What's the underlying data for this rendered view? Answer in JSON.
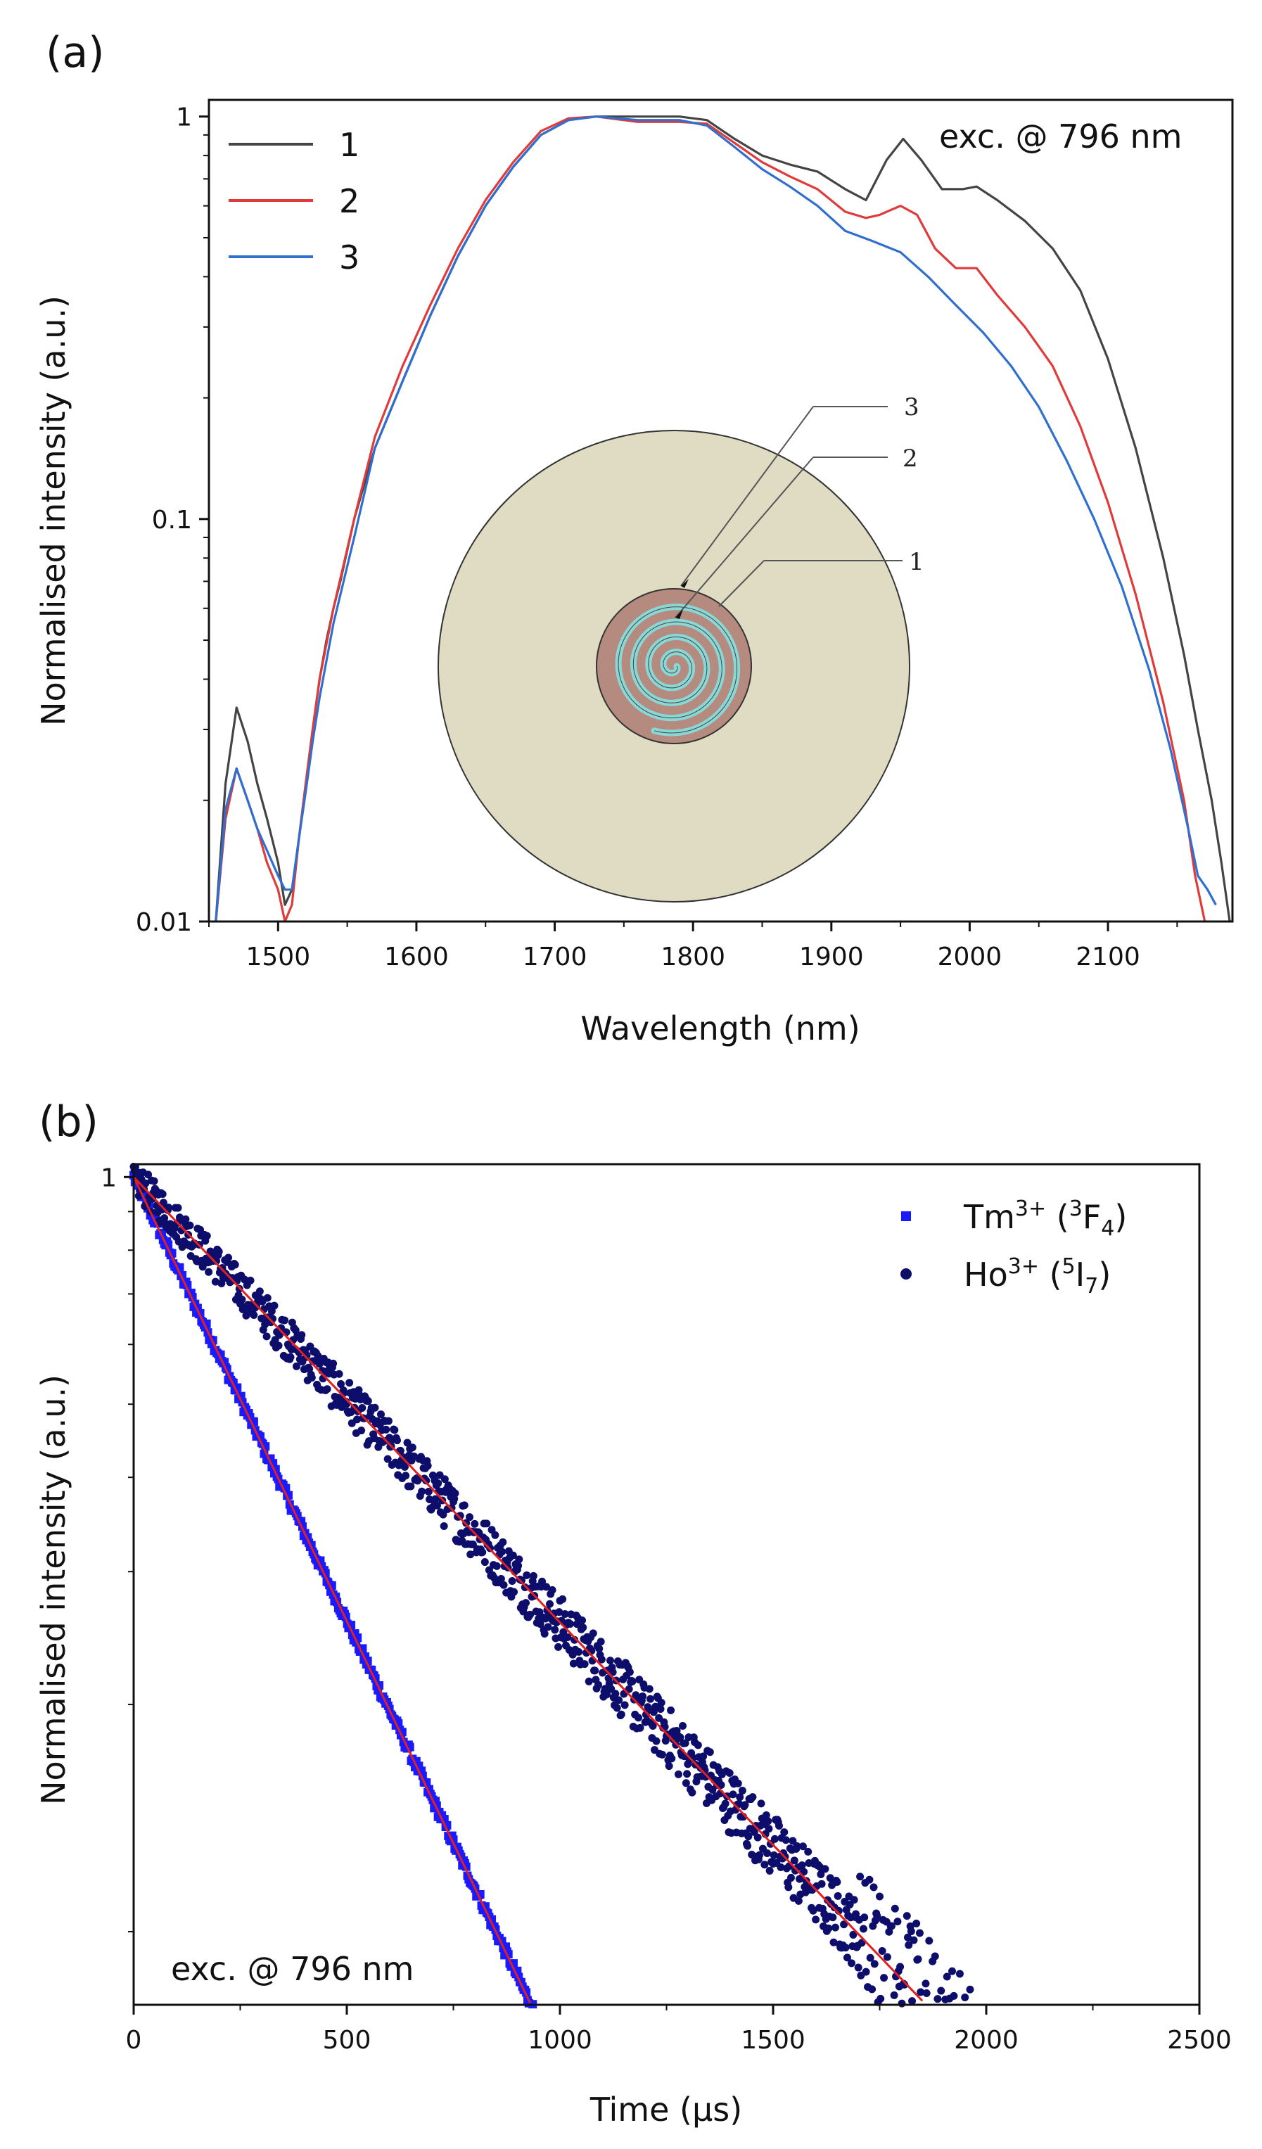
{
  "chart_data": [
    {
      "panel": "(a)",
      "type": "line",
      "xlabel": "Wavelength (nm)",
      "ylabel": "Normalised intensity (a.u.)",
      "yscale": "log",
      "xlim": [
        1450,
        2190
      ],
      "ylim": [
        0.01,
        1.1
      ],
      "xticks": [
        1500,
        1600,
        1700,
        1800,
        1900,
        2000,
        2100
      ],
      "yticks": [
        0.01,
        0.1,
        1
      ],
      "ytick_labels": [
        "0.01",
        "0.1",
        "1"
      ],
      "annotation": "exc. @ 796 nm",
      "legend": {
        "position": "top-left",
        "entries": [
          "1",
          "2",
          "3"
        ]
      },
      "series": [
        {
          "name": "1",
          "color": "#444444",
          "x": [
            1455,
            1462,
            1470,
            1478,
            1485,
            1492,
            1500,
            1505,
            1510,
            1515,
            1520,
            1525,
            1530,
            1535,
            1540,
            1545,
            1555,
            1570,
            1590,
            1610,
            1630,
            1650,
            1670,
            1690,
            1710,
            1730,
            1760,
            1790,
            1810,
            1830,
            1850,
            1870,
            1890,
            1910,
            1925,
            1940,
            1952,
            1965,
            1980,
            1995,
            2005,
            2020,
            2040,
            2060,
            2080,
            2100,
            2120,
            2140,
            2155,
            2165,
            2175,
            2182,
            2188
          ],
          "y": [
            0.01,
            0.022,
            0.034,
            0.028,
            0.022,
            0.018,
            0.014,
            0.011,
            0.012,
            0.016,
            0.022,
            0.03,
            0.04,
            0.05,
            0.06,
            0.07,
            0.1,
            0.15,
            0.22,
            0.32,
            0.45,
            0.6,
            0.75,
            0.9,
            0.98,
            1.0,
            1.0,
            1.0,
            0.98,
            0.88,
            0.8,
            0.76,
            0.73,
            0.66,
            0.62,
            0.78,
            0.88,
            0.78,
            0.66,
            0.66,
            0.67,
            0.62,
            0.55,
            0.47,
            0.37,
            0.25,
            0.15,
            0.08,
            0.046,
            0.03,
            0.02,
            0.014,
            0.01
          ]
        },
        {
          "name": "2",
          "color": "#e03a3a",
          "x": [
            1455,
            1462,
            1470,
            1478,
            1485,
            1492,
            1500,
            1505,
            1510,
            1515,
            1520,
            1525,
            1530,
            1540,
            1555,
            1570,
            1590,
            1610,
            1630,
            1650,
            1670,
            1690,
            1710,
            1730,
            1760,
            1790,
            1810,
            1830,
            1850,
            1870,
            1890,
            1910,
            1925,
            1935,
            1950,
            1962,
            1975,
            1990,
            2005,
            2020,
            2040,
            2060,
            2080,
            2100,
            2120,
            2140,
            2155,
            2163,
            2170
          ],
          "y": [
            0.01,
            0.018,
            0.024,
            0.02,
            0.017,
            0.014,
            0.012,
            0.01,
            0.011,
            0.016,
            0.022,
            0.03,
            0.04,
            0.06,
            0.1,
            0.16,
            0.24,
            0.34,
            0.47,
            0.62,
            0.77,
            0.92,
            0.99,
            1.0,
            0.97,
            0.97,
            0.96,
            0.86,
            0.77,
            0.71,
            0.66,
            0.58,
            0.56,
            0.57,
            0.6,
            0.57,
            0.47,
            0.42,
            0.42,
            0.36,
            0.3,
            0.24,
            0.17,
            0.11,
            0.065,
            0.035,
            0.02,
            0.013,
            0.01
          ]
        },
        {
          "name": "3",
          "color": "#2f6fd0",
          "x": [
            1455,
            1462,
            1470,
            1478,
            1485,
            1492,
            1500,
            1505,
            1510,
            1515,
            1520,
            1525,
            1530,
            1540,
            1555,
            1570,
            1590,
            1610,
            1630,
            1650,
            1670,
            1690,
            1710,
            1730,
            1760,
            1790,
            1810,
            1830,
            1850,
            1870,
            1890,
            1910,
            1930,
            1950,
            1970,
            1990,
            2010,
            2030,
            2050,
            2070,
            2090,
            2110,
            2130,
            2145,
            2158,
            2165,
            2172,
            2178
          ],
          "y": [
            0.01,
            0.019,
            0.024,
            0.02,
            0.017,
            0.015,
            0.013,
            0.012,
            0.012,
            0.016,
            0.021,
            0.028,
            0.036,
            0.055,
            0.09,
            0.15,
            0.22,
            0.32,
            0.45,
            0.6,
            0.75,
            0.9,
            0.98,
            1.0,
            0.98,
            0.98,
            0.95,
            0.84,
            0.74,
            0.67,
            0.6,
            0.52,
            0.49,
            0.46,
            0.4,
            0.34,
            0.29,
            0.24,
            0.19,
            0.14,
            0.1,
            0.068,
            0.042,
            0.027,
            0.017,
            0.013,
            0.012,
            0.011
          ]
        }
      ],
      "inset": {
        "description_labels": [
          "3",
          "2",
          "1"
        ],
        "colors": {
          "cladding": "#e0dcc4",
          "ring_outer": "#b58a7f",
          "ring_inner": "#8ad8d6"
        }
      }
    },
    {
      "panel": "(b)",
      "type": "scatter",
      "xlabel": "Time (µs)",
      "ylabel": "Normalised intensity (a.u.)",
      "yscale": "log",
      "xlim": [
        0,
        2500
      ],
      "ylim": [
        0.08,
        1.04
      ],
      "xticks": [
        0,
        500,
        1000,
        1500,
        2000,
        2500
      ],
      "yticks": [
        1
      ],
      "ytick_labels": [
        "1"
      ],
      "annotation": "exc. @ 796 nm",
      "legend": {
        "position": "top-right"
      },
      "series": [
        {
          "name": "Tm3+ (3F4)",
          "label_main": "Tm",
          "label_sup": "3+",
          "label_open": " (",
          "label_level": "3",
          "label_state": "F",
          "label_sub": "4",
          "label_close": ")",
          "marker": "square",
          "color": "#1a1aff",
          "tau_us": 369,
          "t_max_us": 960,
          "noise": 0.018
        },
        {
          "name": "Ho3+ (5I7)",
          "label_main": "Ho",
          "label_sup": "3+",
          "label_open": " (",
          "label_level": "5",
          "label_state": "I",
          "label_sub": "7",
          "label_close": ")",
          "marker": "circle",
          "color": "#0d0d6b",
          "tau_us": 736,
          "t_max_us": 2320,
          "noise": 0.055
        }
      ],
      "fits": [
        {
          "color": "#e02020",
          "tau_us": 369,
          "t_end_us": 960
        },
        {
          "color": "#e02020",
          "tau_us": 736,
          "t_end_us": 1860
        }
      ]
    }
  ],
  "panel_labels": {
    "a": "(a)",
    "b": "(b)"
  }
}
